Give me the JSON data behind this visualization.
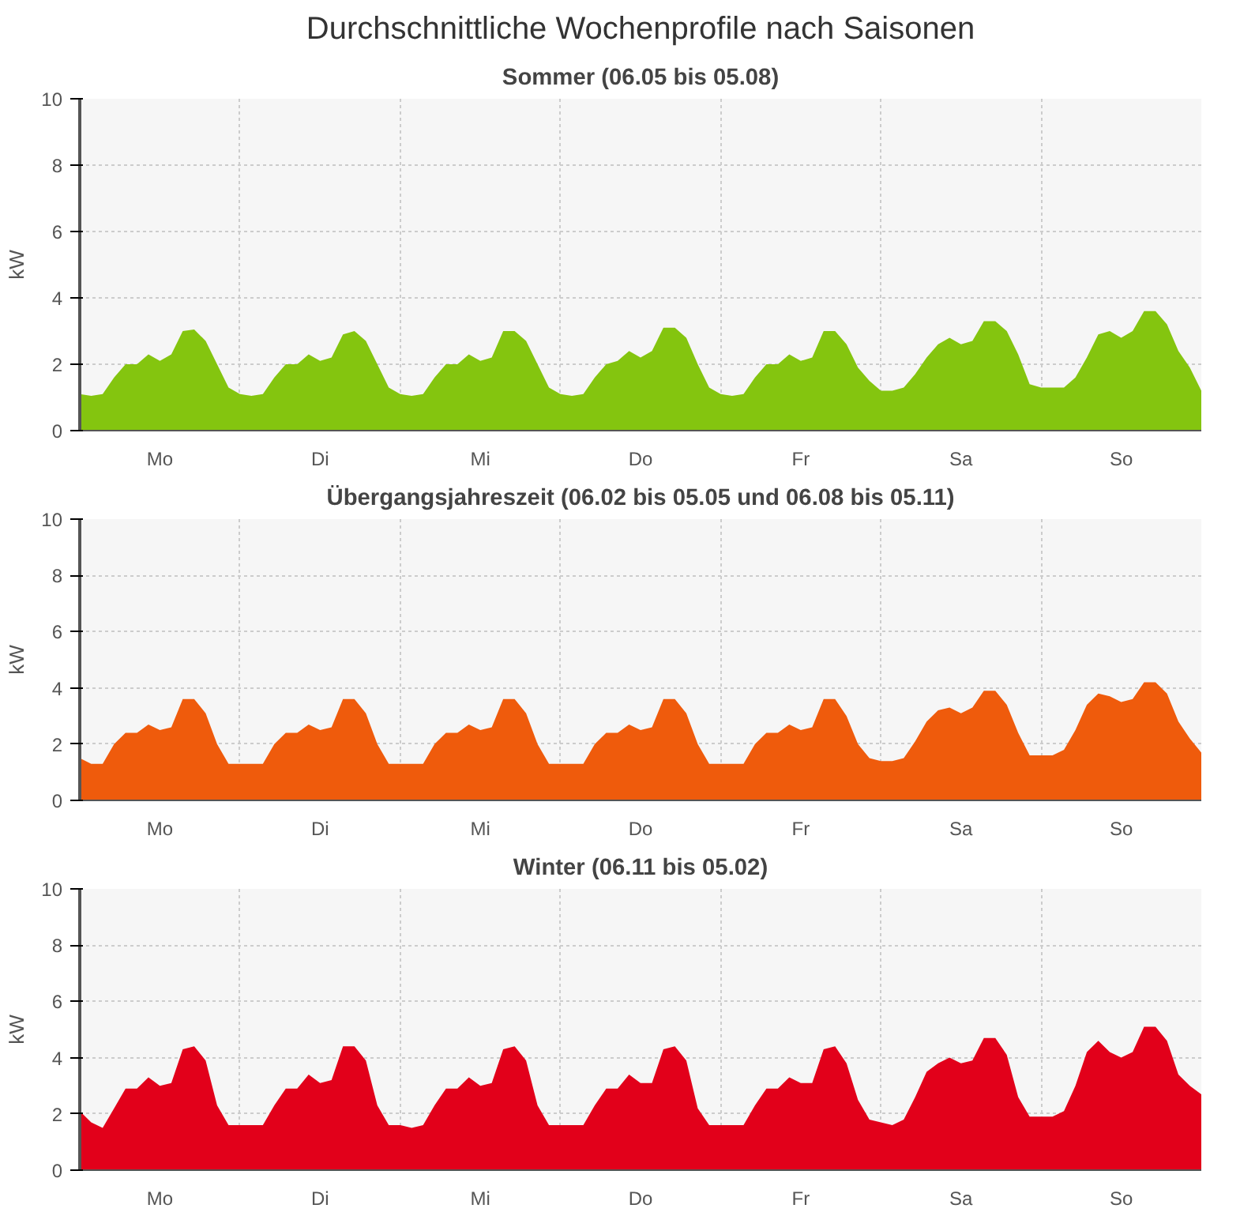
{
  "chart_data": [
    {
      "type": "area",
      "title": "Durchschnittliche Wochenprofile nach Saisonen",
      "subtitle": "Sommer (06.05 bis 05.08)",
      "ylabel": "kW",
      "ylim": [
        0,
        10
      ],
      "yticks": [
        0,
        2,
        4,
        6,
        8,
        10
      ],
      "grid": true,
      "categories": [
        null,
        null,
        null,
        null,
        null,
        null,
        null,
        "Mo",
        null,
        null,
        null,
        null,
        null,
        null,
        null,
        null,
        null,
        null,
        null,
        null,
        null,
        "Di",
        null,
        null,
        null,
        null,
        null,
        null,
        null,
        null,
        null,
        null,
        null,
        null,
        null,
        "Mi",
        null,
        null,
        null,
        null,
        null,
        null,
        null,
        null,
        null,
        null,
        null,
        null,
        null,
        "Do",
        null,
        null,
        null,
        null,
        null,
        null,
        null,
        null,
        null,
        null,
        null,
        null,
        null,
        "Fr",
        null,
        null,
        null,
        null,
        null,
        null,
        null,
        null,
        null,
        null,
        null,
        null,
        null,
        "Sa",
        null,
        null,
        null,
        null,
        null,
        null,
        null,
        null,
        null,
        null,
        null,
        null,
        null,
        "So",
        null,
        null,
        null,
        null,
        null,
        null,
        null
      ],
      "series": [
        {
          "color": "#84c50f",
          "values": [
            1.1,
            1.05,
            1.1,
            1.6,
            2.0,
            2.0,
            2.3,
            2.1,
            2.3,
            3.0,
            3.05,
            2.7,
            2.0,
            1.3,
            1.1,
            1.05,
            1.1,
            1.6,
            2.0,
            2.0,
            2.3,
            2.1,
            2.2,
            2.9,
            3.0,
            2.7,
            2.0,
            1.3,
            1.1,
            1.05,
            1.1,
            1.6,
            2.0,
            2.0,
            2.3,
            2.1,
            2.2,
            3.0,
            3.0,
            2.7,
            2.0,
            1.3,
            1.1,
            1.05,
            1.1,
            1.6,
            2.0,
            2.1,
            2.4,
            2.2,
            2.4,
            3.1,
            3.1,
            2.8,
            2.0,
            1.3,
            1.1,
            1.05,
            1.1,
            1.6,
            2.0,
            2.0,
            2.3,
            2.1,
            2.2,
            3.0,
            3.0,
            2.6,
            1.9,
            1.5,
            1.2,
            1.2,
            1.3,
            1.7,
            2.2,
            2.6,
            2.8,
            2.6,
            2.7,
            3.3,
            3.3,
            3.0,
            2.3,
            1.4,
            1.3,
            1.3,
            1.3,
            1.6,
            2.2,
            2.9,
            3.0,
            2.8,
            3.0,
            3.6,
            3.6,
            3.2,
            2.4,
            1.9,
            1.2
          ]
        }
      ]
    },
    {
      "type": "area",
      "title": "Übergangsjahreszeit (06.02 bis 05.05 und 06.08 bis 05.11)",
      "ylabel": "kW",
      "ylim": [
        0,
        10
      ],
      "yticks": [
        0,
        2,
        4,
        6,
        8,
        10
      ],
      "grid": true,
      "categories": [
        null,
        null,
        null,
        null,
        null,
        null,
        null,
        "Mo",
        null,
        null,
        null,
        null,
        null,
        null,
        null,
        null,
        null,
        null,
        null,
        null,
        null,
        "Di",
        null,
        null,
        null,
        null,
        null,
        null,
        null,
        null,
        null,
        null,
        null,
        null,
        null,
        "Mi",
        null,
        null,
        null,
        null,
        null,
        null,
        null,
        null,
        null,
        null,
        null,
        null,
        null,
        "Do",
        null,
        null,
        null,
        null,
        null,
        null,
        null,
        null,
        null,
        null,
        null,
        null,
        null,
        "Fr",
        null,
        null,
        null,
        null,
        null,
        null,
        null,
        null,
        null,
        null,
        null,
        null,
        null,
        "Sa",
        null,
        null,
        null,
        null,
        null,
        null,
        null,
        null,
        null,
        null,
        null,
        null,
        null,
        "So",
        null,
        null,
        null,
        null,
        null,
        null,
        null
      ],
      "series": [
        {
          "color": "#ef5b0c",
          "values": [
            1.5,
            1.3,
            1.3,
            2.0,
            2.4,
            2.4,
            2.7,
            2.5,
            2.6,
            3.6,
            3.6,
            3.1,
            2.0,
            1.3,
            1.3,
            1.3,
            1.3,
            2.0,
            2.4,
            2.4,
            2.7,
            2.5,
            2.6,
            3.6,
            3.6,
            3.1,
            2.0,
            1.3,
            1.3,
            1.3,
            1.3,
            2.0,
            2.4,
            2.4,
            2.7,
            2.5,
            2.6,
            3.6,
            3.6,
            3.1,
            2.0,
            1.3,
            1.3,
            1.3,
            1.3,
            2.0,
            2.4,
            2.4,
            2.7,
            2.5,
            2.6,
            3.6,
            3.6,
            3.1,
            2.0,
            1.3,
            1.3,
            1.3,
            1.3,
            2.0,
            2.4,
            2.4,
            2.7,
            2.5,
            2.6,
            3.6,
            3.6,
            3.0,
            2.0,
            1.5,
            1.4,
            1.4,
            1.5,
            2.1,
            2.8,
            3.2,
            3.3,
            3.1,
            3.3,
            3.9,
            3.9,
            3.4,
            2.4,
            1.6,
            1.6,
            1.6,
            1.8,
            2.5,
            3.4,
            3.8,
            3.7,
            3.5,
            3.6,
            4.2,
            4.2,
            3.8,
            2.8,
            2.2,
            1.7
          ]
        }
      ]
    },
    {
      "type": "area",
      "title": "Winter (06.11 bis 05.02)",
      "ylabel": "kW",
      "ylim": [
        0,
        10
      ],
      "yticks": [
        0,
        2,
        4,
        6,
        8,
        10
      ],
      "grid": true,
      "categories": [
        null,
        null,
        null,
        null,
        null,
        null,
        null,
        "Mo",
        null,
        null,
        null,
        null,
        null,
        null,
        null,
        null,
        null,
        null,
        null,
        null,
        null,
        "Di",
        null,
        null,
        null,
        null,
        null,
        null,
        null,
        null,
        null,
        null,
        null,
        null,
        null,
        "Mi",
        null,
        null,
        null,
        null,
        null,
        null,
        null,
        null,
        null,
        null,
        null,
        null,
        null,
        "Do",
        null,
        null,
        null,
        null,
        null,
        null,
        null,
        null,
        null,
        null,
        null,
        null,
        null,
        "Fr",
        null,
        null,
        null,
        null,
        null,
        null,
        null,
        null,
        null,
        null,
        null,
        null,
        null,
        "Sa",
        null,
        null,
        null,
        null,
        null,
        null,
        null,
        null,
        null,
        null,
        null,
        null,
        null,
        "So",
        null,
        null,
        null,
        null,
        null,
        null,
        null
      ],
      "series": [
        {
          "color": "#e2001a",
          "values": [
            2.1,
            1.7,
            1.5,
            2.2,
            2.9,
            2.9,
            3.3,
            3.0,
            3.1,
            4.3,
            4.4,
            3.9,
            2.3,
            1.6,
            1.6,
            1.6,
            1.6,
            2.3,
            2.9,
            2.9,
            3.4,
            3.1,
            3.2,
            4.4,
            4.4,
            3.9,
            2.3,
            1.6,
            1.6,
            1.5,
            1.6,
            2.3,
            2.9,
            2.9,
            3.3,
            3.0,
            3.1,
            4.3,
            4.4,
            3.9,
            2.3,
            1.6,
            1.6,
            1.6,
            1.6,
            2.3,
            2.9,
            2.9,
            3.4,
            3.1,
            3.1,
            4.3,
            4.4,
            3.9,
            2.2,
            1.6,
            1.6,
            1.6,
            1.6,
            2.3,
            2.9,
            2.9,
            3.3,
            3.1,
            3.1,
            4.3,
            4.4,
            3.8,
            2.5,
            1.8,
            1.7,
            1.6,
            1.8,
            2.6,
            3.5,
            3.8,
            4.0,
            3.8,
            3.9,
            4.7,
            4.7,
            4.1,
            2.6,
            1.9,
            1.9,
            1.9,
            2.1,
            3.0,
            4.2,
            4.6,
            4.2,
            4.0,
            4.2,
            5.1,
            5.1,
            4.6,
            3.4,
            3.0,
            2.7
          ]
        }
      ]
    }
  ]
}
